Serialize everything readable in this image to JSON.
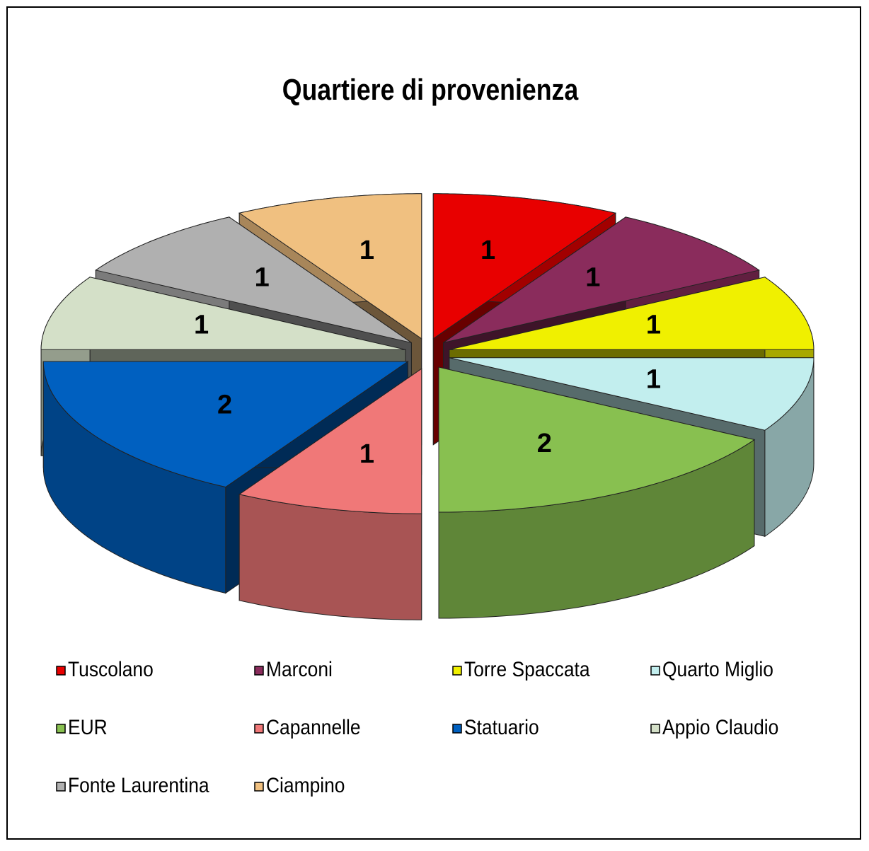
{
  "chart_data": {
    "type": "pie",
    "title": "Quartiere di provenienza",
    "categories": [
      "Tuscolano",
      "Marconi",
      "Torre Spaccata",
      "Quarto Miglio",
      "EUR",
      "Capannelle",
      "Statuario",
      "Appio Claudio",
      "Fonte Laurentina",
      "Ciampino"
    ],
    "values": [
      1,
      1,
      1,
      1,
      2,
      1,
      2,
      1,
      1,
      1
    ],
    "colors": [
      "#e80000",
      "#8a2c5c",
      "#f0f000",
      "#c2eeee",
      "#88c050",
      "#f07878",
      "#0060c0",
      "#d4e0c8",
      "#b0b0b0",
      "#f0c080"
    ],
    "legend": "bottom"
  }
}
